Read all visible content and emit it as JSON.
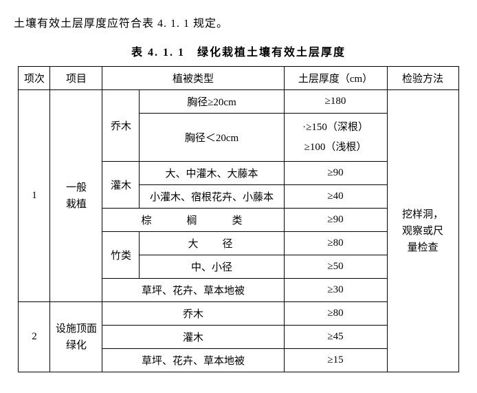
{
  "lead": "土壤有效土层厚度应符合表 4. 1. 1 规定。",
  "title": "表 4. 1. 1　绿化栽植土壤有效土层厚度",
  "headers": {
    "idx": "项次",
    "item": "项目",
    "type": "植被类型",
    "depth": "土层厚度（cm）",
    "check": "检验方法"
  },
  "g1": {
    "idx": "1",
    "item": "一般\n栽植",
    "arbor": {
      "label": "乔木",
      "r1": {
        "spec": "胸径≥20cm",
        "depth": "≥180"
      },
      "r2": {
        "spec": "胸径＜20cm",
        "depth": "·≥150（深根）\n≥100（浅根）"
      }
    },
    "shrub": {
      "label": "灌木",
      "r1": {
        "spec": "大、中灌木、大藤本",
        "depth": "≥90"
      },
      "r2": {
        "spec": "小灌木、宿根花卉、小藤本",
        "depth": "≥40"
      }
    },
    "palm": {
      "spec": "棕　榈　类",
      "depth": "≥90"
    },
    "bamboo": {
      "label": "竹类",
      "r1": {
        "spec": "大　径",
        "depth": "≥80"
      },
      "r2": {
        "spec": "中、小径",
        "depth": "≥50"
      }
    },
    "lawn": {
      "spec": "草坪、花卉、草本地被",
      "depth": "≥30"
    }
  },
  "g2": {
    "idx": "2",
    "item": "设施顶面\n绿化",
    "r1": {
      "spec": "乔木",
      "depth": "≥80"
    },
    "r2": {
      "spec": "灌木",
      "depth": "≥45"
    },
    "r3": {
      "spec": "草坪、花卉、草本地被",
      "depth": "≥15"
    }
  },
  "check_method": "挖样洞，\n观察或尺\n量检查"
}
